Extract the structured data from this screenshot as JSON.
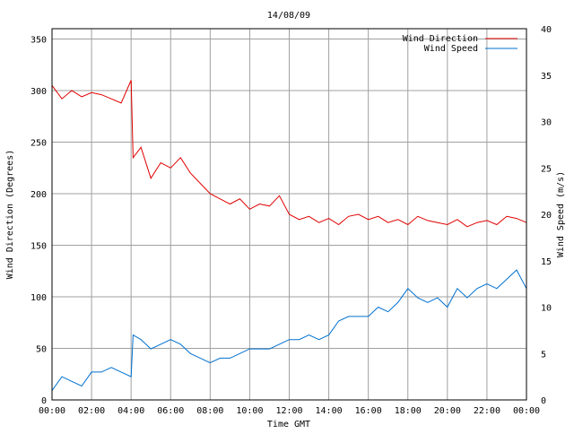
{
  "chart_data": {
    "type": "line",
    "title": "14/08/09",
    "xlabel": "Time GMT",
    "ylabel_left": "Wind Direction (Degrees)",
    "ylabel_right": "Wind Speed (m/s)",
    "x_ticks": [
      "00:00",
      "02:00",
      "04:00",
      "06:00",
      "08:00",
      "10:00",
      "12:00",
      "14:00",
      "16:00",
      "18:00",
      "20:00",
      "22:00",
      "00:00"
    ],
    "y_left_ticks": [
      0,
      50,
      100,
      150,
      200,
      250,
      300,
      350
    ],
    "y_right_ticks": [
      0,
      5,
      10,
      15,
      20,
      25,
      30,
      35,
      40
    ],
    "x_range_hours": [
      0,
      24
    ],
    "y_left_range": [
      0,
      360
    ],
    "y_right_range": [
      0,
      40
    ],
    "grid": true,
    "legend_position": "top-right",
    "series": [
      {
        "name": "Wind Direction",
        "axis": "left",
        "color": "#e00000",
        "x_hours": [
          0,
          0.5,
          1,
          1.5,
          2,
          2.5,
          3,
          3.5,
          4,
          4.1,
          4.5,
          5,
          5.5,
          6,
          6.5,
          7,
          7.5,
          8,
          8.5,
          9,
          9.5,
          10,
          10.5,
          11,
          11.5,
          12,
          12.5,
          13,
          13.5,
          14,
          14.5,
          15,
          15.5,
          16,
          16.5,
          17,
          17.5,
          18,
          18.5,
          19,
          19.5,
          20,
          20.5,
          21,
          21.5,
          22,
          22.5,
          23,
          23.5,
          24
        ],
        "values": [
          305,
          292,
          300,
          294,
          298,
          296,
          292,
          288,
          310,
          235,
          245,
          215,
          230,
          225,
          235,
          220,
          210,
          200,
          195,
          190,
          195,
          185,
          190,
          188,
          198,
          180,
          175,
          178,
          172,
          176,
          170,
          178,
          180,
          175,
          178,
          172,
          175,
          170,
          178,
          174,
          172,
          170,
          175,
          168,
          172,
          174,
          170,
          178,
          176,
          172
        ]
      },
      {
        "name": "Wind Speed",
        "axis": "right",
        "color": "#0070d0",
        "x_hours": [
          0,
          0.5,
          1,
          1.5,
          2,
          2.5,
          3,
          3.5,
          4,
          4.1,
          4.5,
          5,
          5.5,
          6,
          6.5,
          7,
          7.5,
          8,
          8.5,
          9,
          9.5,
          10,
          10.5,
          11,
          11.5,
          12,
          12.5,
          13,
          13.5,
          14,
          14.5,
          15,
          15.5,
          16,
          16.5,
          17,
          17.5,
          18,
          18.5,
          19,
          19.5,
          20,
          20.5,
          21,
          21.5,
          22,
          22.5,
          23,
          23.5,
          24
        ],
        "values": [
          1,
          2.5,
          2,
          1.5,
          3,
          3,
          3.5,
          3,
          2.5,
          7,
          6.5,
          5.5,
          6,
          6.5,
          6,
          5,
          4.5,
          4,
          4.5,
          4.5,
          5,
          5.5,
          5.5,
          5.5,
          6,
          6.5,
          6.5,
          7,
          6.5,
          7,
          8.5,
          9,
          9,
          9,
          10,
          9.5,
          10.5,
          12,
          11,
          10.5,
          11,
          10,
          12,
          11,
          12,
          12.5,
          12,
          13,
          14,
          12
        ]
      }
    ]
  }
}
